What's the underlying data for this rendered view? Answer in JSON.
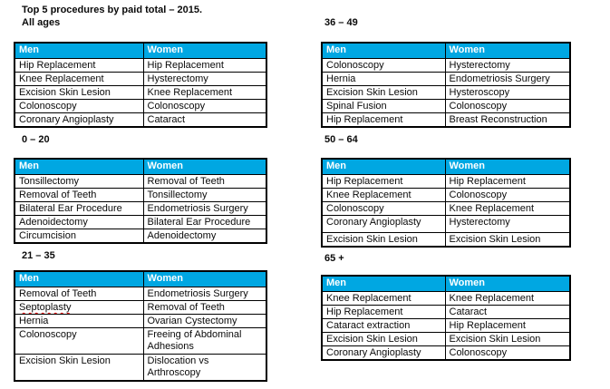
{
  "page_title": "Top 5 procedures by paid total – 2015.",
  "table_headers": {
    "men": "Men",
    "women": "Women"
  },
  "colors": {
    "header_bg": "#00A7E2",
    "header_text": "#FFFFFF",
    "border": "#000000",
    "squiggle": "#E00000",
    "page_bg": "#FFFFFF"
  },
  "spellcheck_flagged": [
    "Septoplasty"
  ],
  "sections": [
    {
      "label": "All ages",
      "men": [
        "Hip Replacement",
        "Knee Replacement",
        "Excision Skin Lesion",
        "Colonoscopy",
        "Coronary Angioplasty"
      ],
      "women": [
        "Hip Replacement",
        "Hysterectomy",
        "Knee Replacement",
        "Colonoscopy",
        "Cataract"
      ]
    },
    {
      "label": "36 – 49",
      "men": [
        "Colonoscopy",
        "Hernia",
        "Excision Skin Lesion",
        "Spinal Fusion",
        "Hip Replacement"
      ],
      "women": [
        "Hysterectomy",
        "Endometriosis Surgery",
        "Hysteroscopy",
        "Colonoscopy",
        "Breast Reconstruction"
      ]
    },
    {
      "label": "0 – 20",
      "men": [
        "Tonsillectomy",
        "Removal of Teeth",
        "Bilateral Ear Procedure",
        "Adenoidectomy",
        "Circumcision"
      ],
      "women": [
        "Removal of Teeth",
        "Tonsillectomy",
        "Endometriosis Surgery",
        "Bilateral Ear Procedure",
        "Adenoidectomy"
      ]
    },
    {
      "label": "50 – 64",
      "men": [
        "Hip Replacement",
        "Knee Replacement",
        "Colonoscopy",
        "Coronary Angioplasty",
        "Excision Skin Lesion"
      ],
      "women": [
        "Hip Replacement",
        "Colonoscopy",
        "Knee Replacement",
        "Hysterectomy",
        "Excision Skin Lesion"
      ]
    },
    {
      "label": "21 – 35",
      "men": [
        "Removal of Teeth",
        "Septoplasty",
        "Hernia",
        "Colonoscopy",
        "Excision Skin Lesion"
      ],
      "women": [
        "Endometriosis Surgery",
        "Removal of Teeth",
        "Ovarian Cystectomy",
        "Freeing of Abdominal Adhesions",
        "Dislocation vs Arthroscopy"
      ]
    },
    {
      "label": "65 +",
      "men": [
        "Knee Replacement",
        "Hip Replacement",
        "Cataract extraction",
        "Excision Skin Lesion",
        "Coronary Angioplasty"
      ],
      "women": [
        "Knee Replacement",
        "Cataract",
        "Hip Replacement",
        "Excision Skin Lesion",
        "Colonoscopy"
      ]
    }
  ]
}
